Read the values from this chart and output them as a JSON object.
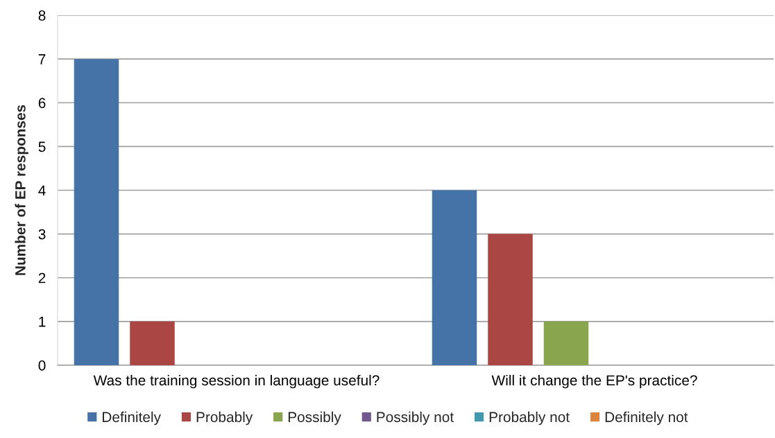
{
  "chart_data": {
    "type": "bar",
    "ylabel": "Number of EP responses",
    "categories": [
      "Was the training session in language useful?",
      "Will it change the EP's practice?"
    ],
    "series": [
      {
        "name": "Definitely",
        "color": "#4572a7",
        "values": [
          7,
          4
        ]
      },
      {
        "name": "Probably",
        "color": "#aa4643",
        "values": [
          1,
          3
        ]
      },
      {
        "name": "Possibly",
        "color": "#89a54e",
        "values": [
          0,
          1
        ]
      },
      {
        "name": "Possibly not",
        "color": "#71588f",
        "values": [
          0,
          0
        ]
      },
      {
        "name": "Probably not",
        "color": "#4198af",
        "values": [
          0,
          0
        ]
      },
      {
        "name": "Definitely not",
        "color": "#db843d",
        "values": [
          0,
          0
        ]
      }
    ],
    "ylim": [
      0,
      8
    ],
    "yticks": [
      0,
      1,
      2,
      3,
      4,
      5,
      6,
      7,
      8
    ],
    "grid": "y",
    "legend": "bottom"
  }
}
